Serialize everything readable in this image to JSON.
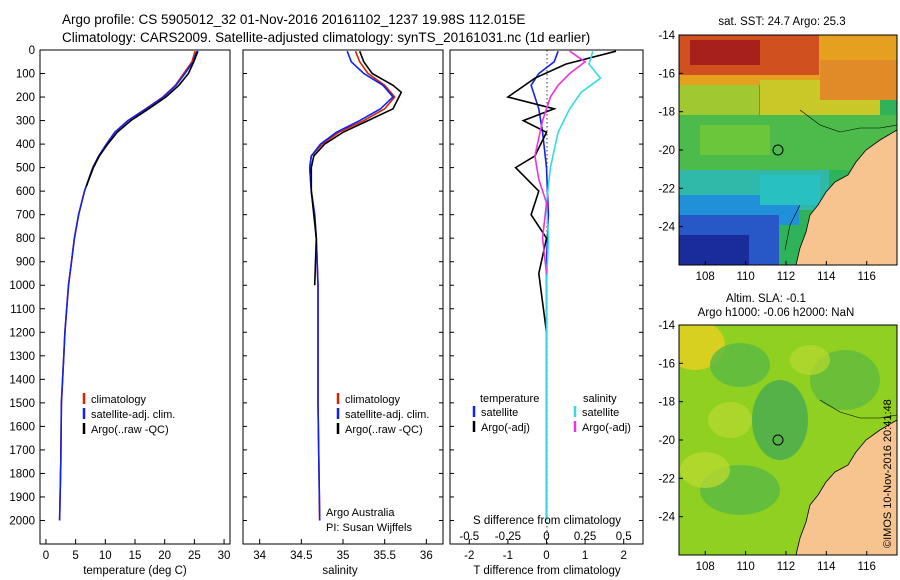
{
  "header": {
    "line1": "Argo profile: CS 5905012_32 01-Nov-2016 20161102_1237 19.98S 112.015E",
    "line2": "Climatology: CARS2009. Satellite-adjusted climatology: synTS_20161031.nc (1d earlier)"
  },
  "colors": {
    "climatology": "#dd2200",
    "satellite_clim": "#1122ee",
    "argo": "#000000",
    "satellite_s": "#33dddd",
    "argo_s": "#ee33dd",
    "land": "#f7c38f"
  },
  "chart_data": [
    {
      "type": "line",
      "name": "temperature-profile",
      "xlabel": "temperature (deg C)",
      "ylabel": "",
      "xlim": [
        -1,
        31
      ],
      "ylim": [
        2100,
        0
      ],
      "x_ticks": [
        0,
        5,
        10,
        15,
        20,
        25,
        30
      ],
      "y_ticks": [
        0,
        100,
        200,
        300,
        400,
        500,
        600,
        700,
        800,
        900,
        1000,
        1100,
        1200,
        1300,
        1400,
        1500,
        1600,
        1700,
        1800,
        1900,
        2000
      ],
      "legend": [
        "climatology",
        "satellite-adj. clim.",
        "Argo(..raw -QC)"
      ],
      "series": [
        {
          "name": "climatology",
          "x": [
            25.1,
            24.6,
            23.2,
            21.8,
            19.7,
            16.8,
            13.8,
            11.6,
            10.2,
            8.9,
            7.9,
            6.5,
            5.5,
            4.8,
            4.3,
            3.8,
            3.5,
            3.2,
            3.0,
            2.8,
            2.6,
            2.5,
            2.3
          ],
          "depth": [
            5,
            50,
            100,
            150,
            200,
            250,
            300,
            350,
            400,
            450,
            500,
            600,
            700,
            800,
            900,
            1000,
            1100,
            1200,
            1300,
            1400,
            1500,
            1750,
            2000
          ]
        },
        {
          "name": "satellite-adj. clim.",
          "x": [
            25.4,
            24.8,
            23.4,
            21.9,
            19.8,
            16.9,
            13.8,
            11.6,
            10.2,
            8.9,
            7.9,
            6.5,
            5.5,
            4.8,
            4.3,
            3.8,
            3.5,
            3.2,
            3.0,
            2.8,
            2.6,
            2.5,
            2.3
          ],
          "depth": [
            5,
            50,
            100,
            150,
            200,
            250,
            300,
            350,
            400,
            450,
            500,
            600,
            700,
            800,
            900,
            1000,
            1100,
            1200,
            1300,
            1400,
            1500,
            1750,
            2000
          ]
        },
        {
          "name": "Argo(..raw -QC)",
          "x": [
            25.6,
            24.9,
            24.0,
            22.4,
            20.2,
            17.3,
            14.3,
            12.0,
            10.4,
            9.0,
            8.0,
            6.8
          ],
          "depth": [
            5,
            50,
            100,
            150,
            200,
            250,
            300,
            350,
            400,
            450,
            500,
            580
          ]
        }
      ]
    },
    {
      "type": "line",
      "name": "salinity-profile",
      "xlabel": "salinity",
      "ylabel": "",
      "xlim": [
        33.8,
        36.2
      ],
      "ylim": [
        2100,
        0
      ],
      "x_ticks": [
        34,
        34.5,
        35,
        35.5,
        36
      ],
      "legend": [
        "climatology",
        "satellite-adj. clim.",
        "Argo(..raw -QC)"
      ],
      "annotation": [
        "Argo Australia",
        "PI: Susan Wijffels"
      ],
      "series": [
        {
          "name": "climatology",
          "x": [
            35.15,
            35.2,
            35.3,
            35.5,
            35.62,
            35.5,
            35.25,
            34.95,
            34.75,
            34.62,
            34.6,
            34.62,
            34.66,
            34.68,
            34.7,
            34.7,
            34.72
          ],
          "depth": [
            5,
            50,
            100,
            150,
            200,
            250,
            300,
            350,
            400,
            450,
            500,
            600,
            700,
            800,
            1000,
            1500,
            2000
          ]
        },
        {
          "name": "satellite-adj. clim.",
          "x": [
            35.05,
            35.1,
            35.25,
            35.48,
            35.6,
            35.45,
            35.2,
            34.92,
            34.73,
            34.62,
            34.6,
            34.62,
            34.66,
            34.68,
            34.7,
            34.7,
            34.72
          ],
          "depth": [
            5,
            50,
            100,
            150,
            200,
            250,
            300,
            350,
            400,
            450,
            500,
            600,
            700,
            800,
            1000,
            1500,
            2000
          ]
        },
        {
          "name": "Argo(..raw -QC)",
          "x": [
            35.2,
            35.25,
            35.35,
            35.6,
            35.7,
            35.6,
            35.3,
            35.0,
            34.78,
            34.65,
            34.62,
            34.62,
            34.65,
            34.68,
            34.66
          ],
          "depth": [
            5,
            50,
            100,
            150,
            180,
            250,
            300,
            350,
            400,
            450,
            500,
            600,
            700,
            800,
            1000
          ]
        }
      ]
    },
    {
      "type": "line",
      "name": "difference-profile",
      "xlabel": "T difference from climatology",
      "x2label": "S difference from climatology",
      "xlim": [
        -2.5,
        2.5
      ],
      "ylim": [
        2100,
        0
      ],
      "x_ticks": [
        -2,
        -1,
        0,
        1,
        2
      ],
      "x2_ticks": [
        "-0.5",
        "-0.25",
        "0",
        "0.25",
        "0.5"
      ],
      "legend_titles": [
        "temperature",
        "salinity"
      ],
      "legend": [
        "satellite",
        "Argo(-adj)",
        "satellite",
        "Argo(-adj)"
      ],
      "series": [
        {
          "name": "T satellite",
          "x": [
            0.3,
            0.2,
            -0.2,
            -0.4,
            -0.2,
            -0.1,
            0.0,
            0.05,
            0.0,
            0.0,
            0.0,
            0.0
          ],
          "depth": [
            5,
            50,
            100,
            150,
            250,
            350,
            500,
            700,
            900,
            1200,
            1600,
            2000
          ]
        },
        {
          "name": "T Argo(-adj)",
          "x": [
            1.8,
            0.5,
            -0.3,
            -1.0,
            0.2,
            -0.6,
            0.0,
            -0.3,
            -0.8,
            -0.2,
            -0.4,
            0.0,
            -0.2,
            0.0
          ],
          "depth": [
            5,
            60,
            120,
            200,
            250,
            300,
            350,
            450,
            500,
            600,
            700,
            800,
            950,
            1200
          ]
        },
        {
          "name": "S satellite",
          "x": [
            1.2,
            1.1,
            1.4,
            0.9,
            0.6,
            0.3,
            0.1,
            0.0,
            0.05,
            0.0,
            0.0,
            0.0
          ],
          "depth": [
            5,
            60,
            120,
            180,
            250,
            350,
            500,
            650,
            800,
            1000,
            1500,
            2000
          ]
        },
        {
          "name": "S Argo(-adj)",
          "x": [
            0.6,
            1.0,
            0.6,
            0.3,
            0.1,
            -0.1,
            -0.3,
            -0.2,
            0.0,
            -0.1,
            0.0
          ],
          "depth": [
            5,
            50,
            100,
            150,
            200,
            300,
            450,
            550,
            650,
            800,
            950
          ]
        }
      ]
    }
  ],
  "maps": {
    "sst": {
      "title": "sat. SST: 24.7  Argo: 25.3",
      "lon_ticks": [
        "108",
        "110",
        "112",
        "114",
        "116"
      ],
      "lat_ticks": [
        "-14",
        "-16",
        "-18",
        "-20",
        "-22",
        "-24"
      ]
    },
    "sla": {
      "title1": "Altim. SLA: -0.1",
      "title2": "Argo h1000: -0.06  h2000: NaN",
      "lon_ticks": [
        "108",
        "110",
        "112",
        "114",
        "116"
      ],
      "lat_ticks": [
        "-14",
        "-16",
        "-18",
        "-20",
        "-22",
        "-24"
      ]
    },
    "float_position": {
      "lon": 112.015,
      "lat": -19.98
    }
  },
  "footer": {
    "credit": "©IMOS 10-Nov-2016 20:41:48"
  }
}
